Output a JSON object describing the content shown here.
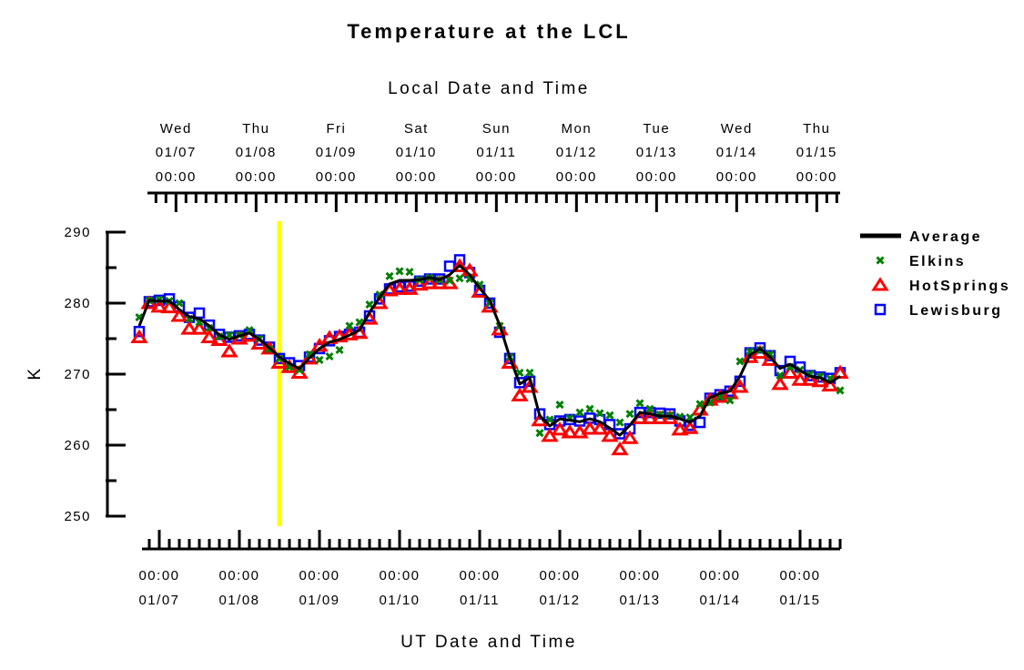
{
  "chart_data": {
    "type": "line",
    "title": "Temperature at the LCL",
    "top_xlabel": "Local Date and Time",
    "xlabel": "UT Date and Time",
    "ylabel": "K",
    "ylim": [
      250,
      290
    ],
    "yticks": [
      "250",
      "260",
      "270",
      "280",
      "290"
    ],
    "x_units": "hours since 01/07 00:00 UT",
    "xlim": [
      -6,
      204
    ],
    "bottom_ticks": [
      {
        "time": "00:00",
        "date": "01/07"
      },
      {
        "time": "00:00",
        "date": "01/08"
      },
      {
        "time": "00:00",
        "date": "01/09"
      },
      {
        "time": "00:00",
        "date": "01/10"
      },
      {
        "time": "00:00",
        "date": "01/11"
      },
      {
        "time": "00:00",
        "date": "01/12"
      },
      {
        "time": "00:00",
        "date": "01/13"
      },
      {
        "time": "00:00",
        "date": "01/14"
      },
      {
        "time": "00:00",
        "date": "01/15"
      }
    ],
    "local_offset_hours": -5,
    "top_ticks": [
      {
        "day": "Wed",
        "date": "01/07",
        "time": "00:00"
      },
      {
        "day": "Thu",
        "date": "01/08",
        "time": "00:00"
      },
      {
        "day": "Fri",
        "date": "01/09",
        "time": "00:00"
      },
      {
        "day": "Sat",
        "date": "01/10",
        "time": "00:00"
      },
      {
        "day": "Sun",
        "date": "01/11",
        "time": "00:00"
      },
      {
        "day": "Mon",
        "date": "01/12",
        "time": "00:00"
      },
      {
        "day": "Tue",
        "date": "01/13",
        "time": "00:00"
      },
      {
        "day": "Wed",
        "date": "01/14",
        "time": "00:00"
      },
      {
        "day": "Thu",
        "date": "01/15",
        "time": "00:00"
      }
    ],
    "x_start_hour": -6,
    "x_step_hours": 3,
    "marker_hour": 36,
    "marker_color": "#ffff00",
    "legend_position": "right",
    "series": [
      {
        "name": "Average",
        "style": "line",
        "color": "#000000",
        "values": [
          276.8,
          280.4,
          280.3,
          280.3,
          279.1,
          278.1,
          277.8,
          276.8,
          275.5,
          274.9,
          275.4,
          275.8,
          274.9,
          273.7,
          272.4,
          271.5,
          270.8,
          272.3,
          273.6,
          274.5,
          274.9,
          275.5,
          276.2,
          278.7,
          280.8,
          282.7,
          283.2,
          283.2,
          283.3,
          283.6,
          283.3,
          284.0,
          285.3,
          284.0,
          282.1,
          280.4,
          276.9,
          272.4,
          268.6,
          269.5,
          264.1,
          262.7,
          263.7,
          263.5,
          263.3,
          263.7,
          263.3,
          262.4,
          261.4,
          262.8,
          264.6,
          264.4,
          264.1,
          264.1,
          263.7,
          263.2,
          264.1,
          266.7,
          267.3,
          267.6,
          269.7,
          272.7,
          273.6,
          272.4,
          270.8,
          271.4,
          270.5,
          269.7,
          269.5,
          268.8,
          269.7
        ]
      },
      {
        "name": "Elkins",
        "style": "x",
        "color": "#008000",
        "values": [
          278.0,
          280.4,
          280.5,
          280.3,
          280.0,
          277.8,
          277.3,
          276.5,
          275.3,
          275.5,
          275.5,
          276.2,
          275.0,
          273.5,
          272.2,
          271.0,
          270.6,
          272.8,
          272.0,
          272.5,
          273.4,
          276.8,
          277.3,
          279.8,
          281.2,
          283.8,
          284.5,
          284.4,
          283.3,
          283.6,
          283.3,
          283.2,
          283.5,
          283.4,
          282.6,
          280.0,
          276.8,
          272.4,
          270.2,
          270.2,
          261.7,
          263.6,
          265.7,
          263.8,
          264.6,
          265.1,
          264.5,
          264.2,
          263.2,
          264.4,
          265.9,
          265.1,
          264.3,
          264.2,
          264.0,
          263.9,
          265.8,
          266.0,
          266.8,
          266.3,
          271.8,
          273.2,
          273.4,
          272.8,
          269.8,
          271.0,
          270.6,
          270.0,
          269.7,
          269.4,
          267.7
        ]
      },
      {
        "name": "HotSprings",
        "style": "triangle",
        "color": "#ff0000",
        "values": [
          275.2,
          280.0,
          279.5,
          279.4,
          278.2,
          276.4,
          276.4,
          275.2,
          274.8,
          273.2,
          275.0,
          275.4,
          274.3,
          273.6,
          271.6,
          271.0,
          270.2,
          272.2,
          274.0,
          275.1,
          275.3,
          275.6,
          275.8,
          277.8,
          280.0,
          281.8,
          282.0,
          282.0,
          282.6,
          282.8,
          282.8,
          282.8,
          285.2,
          284.6,
          281.6,
          279.5,
          276.3,
          271.6,
          267.0,
          268.2,
          263.5,
          261.3,
          262.2,
          261.8,
          261.8,
          262.3,
          262.3,
          261.3,
          259.4,
          261.0,
          263.8,
          263.8,
          263.8,
          263.8,
          262.2,
          262.4,
          265.0,
          266.4,
          266.8,
          267.3,
          268.2,
          272.4,
          273.0,
          272.0,
          268.6,
          270.2,
          269.2,
          269.2,
          269.0,
          268.4,
          270.2
        ]
      },
      {
        "name": "Lewisburg",
        "style": "square",
        "color": "#0000ff",
        "values": [
          276.0,
          280.2,
          280.4,
          280.6,
          279.5,
          278.0,
          278.6,
          276.9,
          275.6,
          275.2,
          275.4,
          275.6,
          274.8,
          273.8,
          272.2,
          271.6,
          271.2,
          272.4,
          273.6,
          274.7,
          275.3,
          275.6,
          275.9,
          278.2,
          280.6,
          282.0,
          282.3,
          282.4,
          283.1,
          283.4,
          283.4,
          285.2,
          286.1,
          284.3,
          281.8,
          280.0,
          275.9,
          272.2,
          268.8,
          269.0,
          264.4,
          262.9,
          263.4,
          263.6,
          263.4,
          263.8,
          263.6,
          262.9,
          261.6,
          262.3,
          264.6,
          264.6,
          264.5,
          264.4,
          263.4,
          262.8,
          263.2,
          266.6,
          267.1,
          267.6,
          269.0,
          273.0,
          273.7,
          272.6,
          270.5,
          271.8,
          271.0,
          269.8,
          269.6,
          269.4,
          270.2
        ]
      }
    ]
  }
}
